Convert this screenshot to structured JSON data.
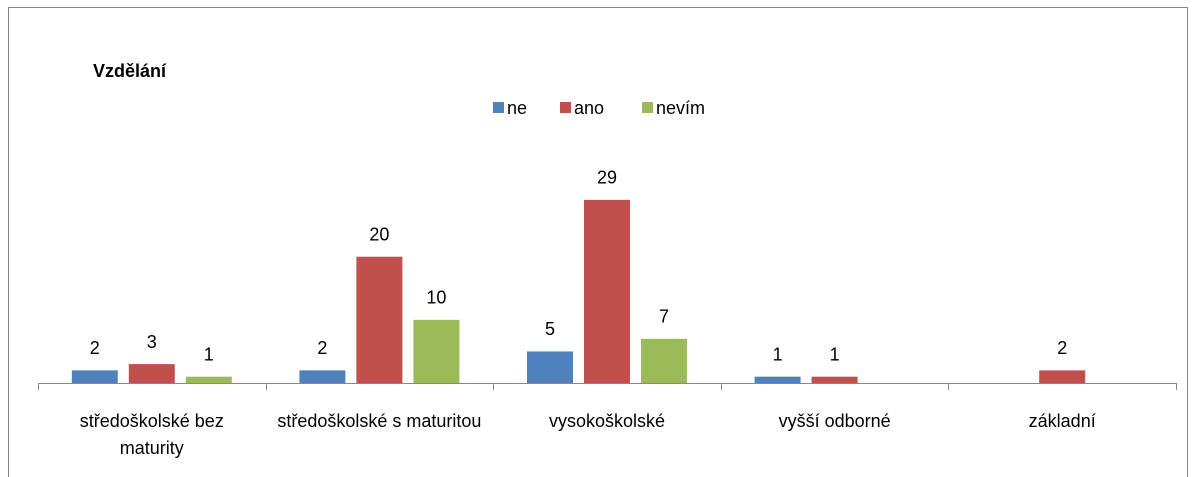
{
  "chart_data": {
    "type": "bar",
    "title": "Vzdělání",
    "categories": [
      "středoškolské bez maturity",
      "středoškolské s maturitou",
      "vysokoškolské",
      "vyšší odborné",
      "základní"
    ],
    "series": [
      {
        "name": "ne",
        "color": "#4f81bd",
        "values": [
          2,
          2,
          5,
          1,
          null
        ]
      },
      {
        "name": "ano",
        "color": "#c0504d",
        "values": [
          3,
          20,
          29,
          1,
          2
        ]
      },
      {
        "name": "nevím",
        "color": "#9bbb59",
        "values": [
          1,
          10,
          7,
          null,
          null
        ]
      }
    ],
    "ylim": [
      0,
      35
    ],
    "grid": false,
    "legend": "top"
  }
}
